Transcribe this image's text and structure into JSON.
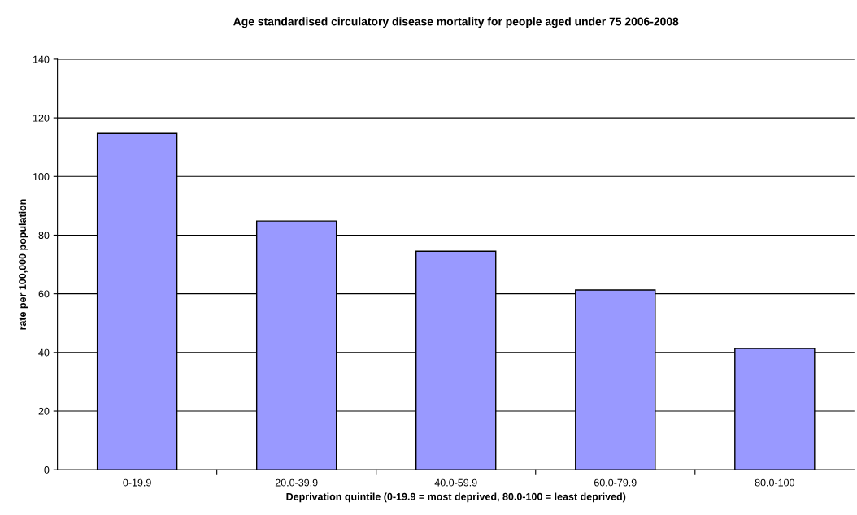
{
  "chart_data": {
    "type": "bar",
    "title": "Age standardised circulatory disease mortality for people aged under 75 2006-2008",
    "xlabel": "Deprivation quintile (0-19.9 = most deprived, 80.0-100 = least deprived)",
    "ylabel": "rate per 100,000 population",
    "categories": [
      "0-19.9",
      "20.0-39.9",
      "40.0-59.9",
      "60.0-79.9",
      "80.0-100"
    ],
    "values": [
      114.7,
      84.8,
      74.5,
      61.3,
      41.3
    ],
    "color": "#9999ff",
    "ylim": [
      0,
      140
    ],
    "yticks": [
      0,
      20,
      40,
      60,
      80,
      100,
      120,
      140
    ],
    "grid": "y"
  }
}
